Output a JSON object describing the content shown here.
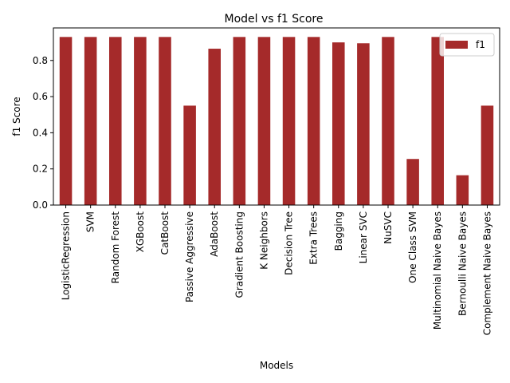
{
  "chart_data": {
    "type": "bar",
    "title": "Model vs f1 Score",
    "xlabel": "Models",
    "ylabel": "f1 Score",
    "ylim": [
      0,
      0.98
    ],
    "yticks": [
      "0.0",
      "0.2",
      "0.4",
      "0.6",
      "0.8"
    ],
    "yticks_values": [
      0.0,
      0.2,
      0.4,
      0.6,
      0.8
    ],
    "grid": false,
    "legend": "top-right",
    "categories": [
      "LogisticRegression",
      "SVM",
      "Random Forest",
      "XGBoost",
      "CatBoost",
      "Passive Aggressive",
      "AdaBoost",
      "Gradient Boosting",
      "K Neighbors",
      "Decision Tree",
      "Extra Trees",
      "Bagging",
      "Linear SVC",
      "NuSVC",
      "One Class SVM",
      "Multinomial Naive Bayes",
      "Bernoulli Naive Bayes",
      "Complement Naive Bayes"
    ],
    "series": [
      {
        "name": "f1",
        "color": "#a52a2a",
        "values": [
          0.93,
          0.93,
          0.93,
          0.93,
          0.93,
          0.55,
          0.865,
          0.93,
          0.93,
          0.93,
          0.93,
          0.9,
          0.895,
          0.93,
          0.255,
          0.93,
          0.165,
          0.55
        ]
      }
    ]
  }
}
